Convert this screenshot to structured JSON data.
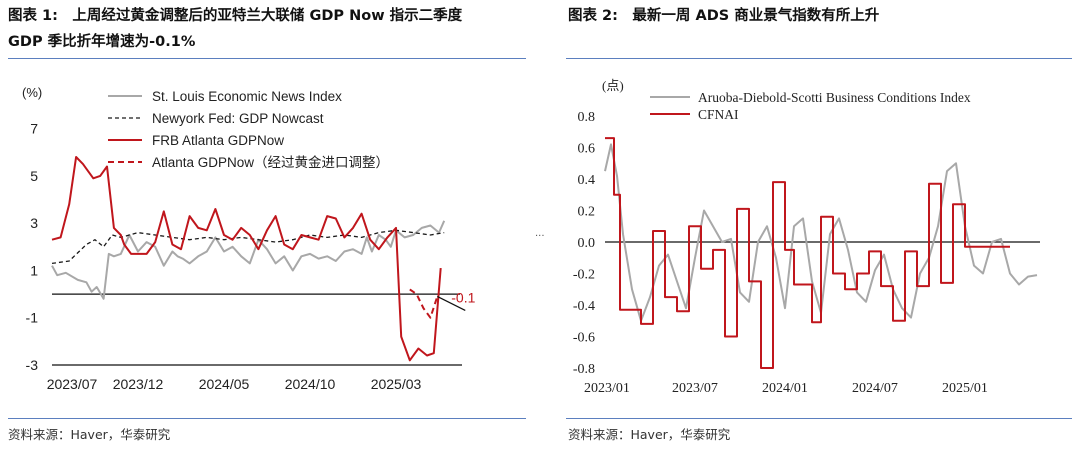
{
  "left": {
    "title_line1": "图表 1:　上周经过黄金调整后的亚特兰大联储 GDP Now 指示二季度",
    "title_line2": "GDP 季比折年增速为-0.1%",
    "source": "资料来源：Haver，华泰研究",
    "colors": {
      "gray": "#a8a8a8",
      "black": "#1a1a1a",
      "red": "#c0161c"
    },
    "chart_data": {
      "type": "line",
      "unit_label": "(%)",
      "ylim": [
        -3,
        8
      ],
      "yticks": [
        7,
        5,
        3,
        1,
        -1,
        -3
      ],
      "x_start": 0,
      "x_end": 25,
      "xtick_positions": [
        0,
        5,
        10,
        15,
        20
      ],
      "xtick_labels": [
        "2023/07",
        "2023/12",
        "2024/05",
        "2024/10",
        "2025/03"
      ],
      "annotation": "-0.1",
      "legend": [
        {
          "label": "St. Louis Economic News Index",
          "style": "gray"
        },
        {
          "label": "Newyork Fed: GDP Nowcast",
          "style": "black-dash"
        },
        {
          "label": "FRB Atlanta GDPNow",
          "style": "red"
        },
        {
          "label": "Atlanta GDPNow（经过黄金进口调整）",
          "style": "red-dash"
        }
      ],
      "series": [
        {
          "name": "St. Louis Economic News Index",
          "style": "gray",
          "x": [
            0,
            0.3,
            0.8,
            1.5,
            2,
            2.3,
            2.6,
            3,
            3.3,
            3.6,
            4,
            4.5,
            5,
            5.5,
            6,
            6.5,
            7,
            7.3,
            7.6,
            8,
            8.5,
            9,
            9.5,
            10,
            10.5,
            11,
            11.5,
            12,
            12.5,
            13,
            13.5,
            14,
            14.5,
            15,
            15.5,
            16,
            16.5,
            17,
            17.5,
            18,
            18.3,
            18.6,
            19,
            19.4,
            19.7,
            20,
            20.5,
            21,
            21.5,
            22,
            22.5,
            22.8
          ],
          "y": [
            1.2,
            0.8,
            0.9,
            0.6,
            0.5,
            0.1,
            0.3,
            -0.2,
            1.7,
            1.6,
            1.7,
            2.5,
            1.8,
            2.2,
            2.0,
            1.2,
            1.8,
            1.6,
            1.5,
            1.3,
            1.6,
            1.8,
            2.4,
            1.8,
            2.0,
            1.6,
            1.3,
            2.3,
            1.9,
            1.3,
            1.6,
            1.0,
            1.6,
            1.7,
            1.5,
            1.6,
            1.4,
            1.8,
            1.9,
            1.7,
            2.4,
            1.8,
            2.5,
            2.3,
            2.0,
            2.7,
            2.4,
            2.5,
            2.8,
            2.9,
            2.6,
            3.1
          ]
        },
        {
          "name": "Newyork Fed: GDP Nowcast",
          "style": "black-dash",
          "x": [
            0,
            1,
            2,
            2.5,
            3,
            3.5,
            4,
            5,
            6,
            7,
            8,
            9,
            10,
            11,
            12,
            13,
            14,
            15,
            16,
            17,
            18,
            19,
            20,
            21,
            22,
            22.8
          ],
          "y": [
            1.3,
            1.4,
            2.1,
            2.3,
            2.0,
            2.5,
            2.4,
            2.6,
            2.5,
            2.4,
            2.3,
            2.4,
            2.3,
            2.4,
            2.3,
            2.2,
            2.3,
            2.5,
            2.4,
            2.5,
            2.4,
            2.6,
            2.7,
            2.6,
            2.5,
            2.6
          ]
        },
        {
          "name": "FRB Atlanta GDPNow",
          "style": "red",
          "x": [
            0,
            0.5,
            1,
            1.4,
            1.8,
            2.0,
            2.4,
            2.8,
            3.2,
            3.6,
            4.0,
            4.2,
            4.6,
            5,
            5.5,
            6,
            6.5,
            7,
            7.5,
            8,
            8.5,
            9,
            9.5,
            10,
            10.5,
            11,
            11.5,
            12,
            12.5,
            13,
            13.5,
            14,
            14.5,
            15,
            15.5,
            16,
            16.5,
            17,
            17.5,
            18,
            18.5,
            19,
            19.5,
            20,
            20.3,
            20.8,
            21.3,
            21.8,
            22.2,
            22.6
          ],
          "y": [
            2.3,
            2.4,
            3.8,
            5.8,
            5.5,
            5.3,
            4.9,
            5.0,
            5.4,
            2.8,
            2.5,
            2.1,
            1.7,
            1.7,
            1.7,
            2.2,
            3.5,
            2.1,
            1.9,
            3.3,
            2.8,
            2.7,
            3.6,
            2.5,
            2.3,
            2.8,
            2.5,
            1.9,
            2.7,
            3.3,
            2.1,
            1.9,
            2.5,
            2.4,
            2.3,
            3.3,
            3.2,
            2.4,
            2.8,
            3.4,
            2.3,
            1.9,
            2.4,
            2.8,
            -1.8,
            -2.8,
            -2.3,
            -2.6,
            -2.5,
            1.1
          ]
        },
        {
          "name": "Atlanta GDPNow（经过黄金进口调整）",
          "style": "red-dash",
          "x": [
            20.8,
            21.2,
            21.6,
            22.0,
            22.4
          ],
          "y": [
            0.2,
            0.0,
            -0.6,
            -1.0,
            -0.1
          ]
        }
      ]
    }
  },
  "right": {
    "title": "图表 2:　最新一周 ADS 商业景气指数有所上升",
    "source": "资料来源：Haver，华泰研究",
    "colors": {
      "gray": "#a8a8a8",
      "red": "#c0161c"
    },
    "chart_data": {
      "type": "line",
      "unit_label": "(点)",
      "ylim": [
        -0.8,
        0.8
      ],
      "yticks": [
        0.8,
        0.6,
        0.4,
        0.2,
        0.0,
        -0.2,
        -0.4,
        -0.6,
        -0.8
      ],
      "ytick_labels": [
        "0.8",
        "0.6",
        "0.4",
        "0.2",
        "0.0",
        "-0.2",
        "-0.4",
        "-0.6",
        "-0.8"
      ],
      "x_start": 0,
      "x_end": 29,
      "xtick_positions": [
        0,
        6,
        12,
        18,
        24
      ],
      "xtick_labels": [
        "2023/01",
        "2023/07",
        "2024/01",
        "2024/07",
        "2025/01"
      ],
      "legend": [
        {
          "label": "Aruoba-Diebold-Scotti Business Conditions Index",
          "style": "gray"
        },
        {
          "label": "CFNAI",
          "style": "red"
        }
      ],
      "series": [
        {
          "name": "Aruoba-Diebold-Scotti Business Conditions Index",
          "style": "gray",
          "x": [
            0,
            0.4,
            0.8,
            1.2,
            1.8,
            2.4,
            3.0,
            3.6,
            4.2,
            4.8,
            5.4,
            6.0,
            6.6,
            7.2,
            7.8,
            8.4,
            9.0,
            9.6,
            10.2,
            10.8,
            11.4,
            12.0,
            12.6,
            13.2,
            13.8,
            14.4,
            15.0,
            15.6,
            16.2,
            16.8,
            17.4,
            18.0,
            18.6,
            19.2,
            19.8,
            20.4,
            21.0,
            21.6,
            22.2,
            22.8,
            23.4,
            24.0,
            24.6,
            25.2,
            25.8,
            26.4,
            27.0,
            27.6,
            28.2,
            28.8
          ],
          "y": [
            0.45,
            0.62,
            0.42,
            0.05,
            -0.3,
            -0.5,
            -0.35,
            -0.15,
            -0.08,
            -0.25,
            -0.42,
            -0.1,
            0.2,
            0.1,
            0.0,
            0.02,
            -0.32,
            -0.38,
            0.0,
            0.1,
            -0.1,
            -0.42,
            0.1,
            0.15,
            -0.25,
            -0.45,
            0.05,
            0.15,
            -0.05,
            -0.32,
            -0.38,
            -0.18,
            -0.08,
            -0.3,
            -0.42,
            -0.48,
            -0.2,
            -0.1,
            0.1,
            0.45,
            0.5,
            0.1,
            -0.15,
            -0.2,
            0.0,
            0.02,
            -0.2,
            -0.27,
            -0.22,
            -0.21
          ]
        },
        {
          "name": "CFNAI",
          "style": "red",
          "step": true,
          "x": [
            0,
            0.6,
            1.0,
            1.6,
            2.4,
            3.2,
            4.0,
            4.8,
            5.6,
            6.4,
            7.2,
            8.0,
            8.8,
            9.6,
            10.4,
            11.2,
            12.0,
            12.6,
            13.2,
            13.8,
            14.4,
            15.2,
            16.0,
            16.8,
            17.6,
            18.4,
            19.2,
            20.0,
            20.8,
            21.6,
            22.4,
            23.2,
            24.0,
            24.8,
            25.6,
            26.4,
            27.0
          ],
          "y": [
            0.66,
            0.3,
            -0.43,
            -0.43,
            -0.52,
            0.07,
            -0.35,
            -0.44,
            0.1,
            -0.17,
            -0.05,
            -0.6,
            0.21,
            -0.25,
            -0.8,
            0.38,
            -0.05,
            -0.27,
            -0.27,
            -0.51,
            0.16,
            -0.2,
            -0.3,
            -0.2,
            -0.06,
            -0.28,
            -0.5,
            -0.06,
            -0.28,
            0.37,
            -0.26,
            0.24,
            -0.03,
            -0.03,
            -0.03,
            -0.03,
            -0.03
          ]
        }
      ]
    }
  }
}
